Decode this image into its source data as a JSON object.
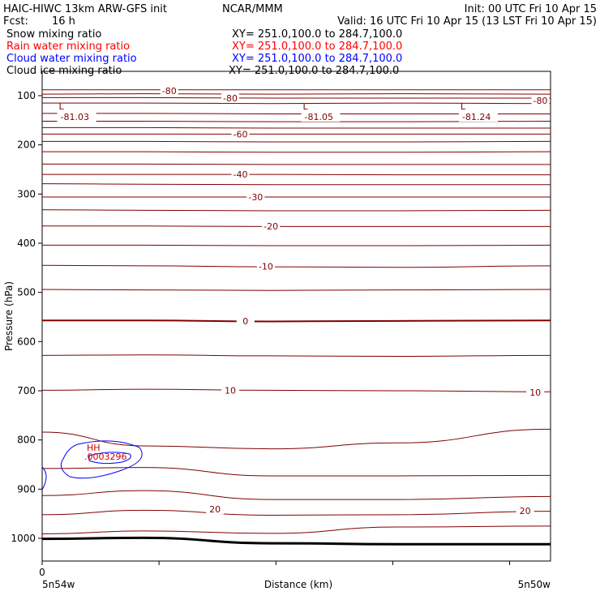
{
  "header": {
    "title_left": "HAIC-HIWC 13km ARW-GFS init",
    "institution": "NCAR/MMM",
    "init": "Init: 00 UTC Fri 10 Apr 15",
    "fcst_label": "Fcst:",
    "fcst_value": "16 h",
    "valid": "Valid: 16 UTC Fri 10 Apr 15 (13 LST Fri 10 Apr 15)"
  },
  "fields": [
    {
      "name": "Snow mixing ratio",
      "xy": "XY= 251.0,100.0 to 284.7,100.0",
      "color": "#000000"
    },
    {
      "name": "Rain water mixing ratio",
      "xy": "XY= 251.0,100.0 to 284.7,100.0",
      "color": "#ff0000"
    },
    {
      "name": "Cloud water mixing ratio",
      "xy": "XY= 251.0,100.0 to 284.7,100.0",
      "color": "#0000ff"
    },
    {
      "name": "Cloud ice mixing ratio",
      "xy": "XY= 251.0,100.0 to 284.7,100.0",
      "color": "#000000"
    }
  ],
  "chart_data": {
    "type": "line",
    "xlabel": "Distance (km)",
    "ylabel": "Pressure (hPa)",
    "y_ticks": [
      100,
      200,
      300,
      400,
      500,
      600,
      700,
      800,
      900,
      1000
    ],
    "x_tick_labels": [
      "0"
    ],
    "x_endpoint_labels": [
      "5n54w",
      "5n50w"
    ],
    "ylim": [
      1050,
      75
    ],
    "xlim": [
      0,
      100
    ],
    "contour_color": "#800000",
    "cloud_color": "#0000ff",
    "ground_color": "#000000",
    "contour_labels": [
      {
        "text": "-80",
        "x": 25,
        "p": 90
      },
      {
        "text": "-80",
        "x": 37,
        "p": 105
      },
      {
        "text": "-80",
        "x": 98,
        "p": 110
      },
      {
        "text": "-60",
        "x": 39,
        "p": 178
      },
      {
        "text": "-40",
        "x": 39,
        "p": 260
      },
      {
        "text": "-30",
        "x": 42,
        "p": 306
      },
      {
        "text": "-20",
        "x": 45,
        "p": 365
      },
      {
        "text": "-10",
        "x": 44,
        "p": 447
      },
      {
        "text": "0",
        "x": 40,
        "p": 558
      },
      {
        "text": "10",
        "x": 37,
        "p": 699
      },
      {
        "text": "10",
        "x": 97,
        "p": 703
      },
      {
        "text": "20",
        "x": 34,
        "p": 941
      },
      {
        "text": "20",
        "x": 95,
        "p": 944
      }
    ],
    "extrema": [
      {
        "symbol": "L",
        "value": "-81.03",
        "x": 2,
        "p": 92
      },
      {
        "symbol": "L",
        "value": "-81.05",
        "x": 50,
        "p": 92
      },
      {
        "symbol": "L",
        "value": "-81.24",
        "x": 81,
        "p": 92
      }
    ],
    "cloud_high": {
      "symbol": "HH",
      "value": ".0003296",
      "x": 10,
      "p": 837
    }
  }
}
